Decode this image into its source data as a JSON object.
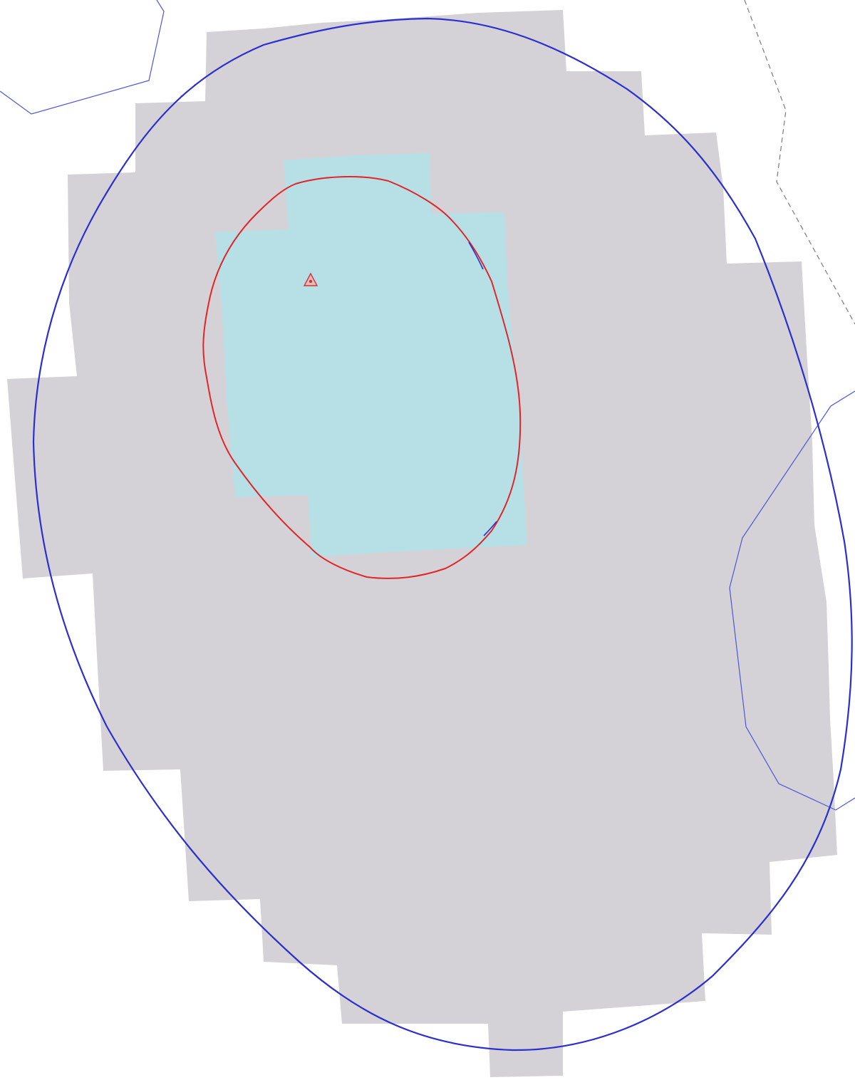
{
  "map": {
    "colors": {
      "background": "#ffffff",
      "outer_coverage": "#d4d2d6",
      "inner_coverage": "#b6e0e6",
      "outer_contour": "#2b2fd0",
      "inner_contour": "#e0262a",
      "boundary_line": "#4e56d6",
      "dashed_boundary": "#7a7a7a",
      "site_marker_fill": "#e9b8b8",
      "site_marker_stroke": "#c03a3a"
    },
    "icons": {
      "site_marker": "triangle-icon"
    }
  }
}
